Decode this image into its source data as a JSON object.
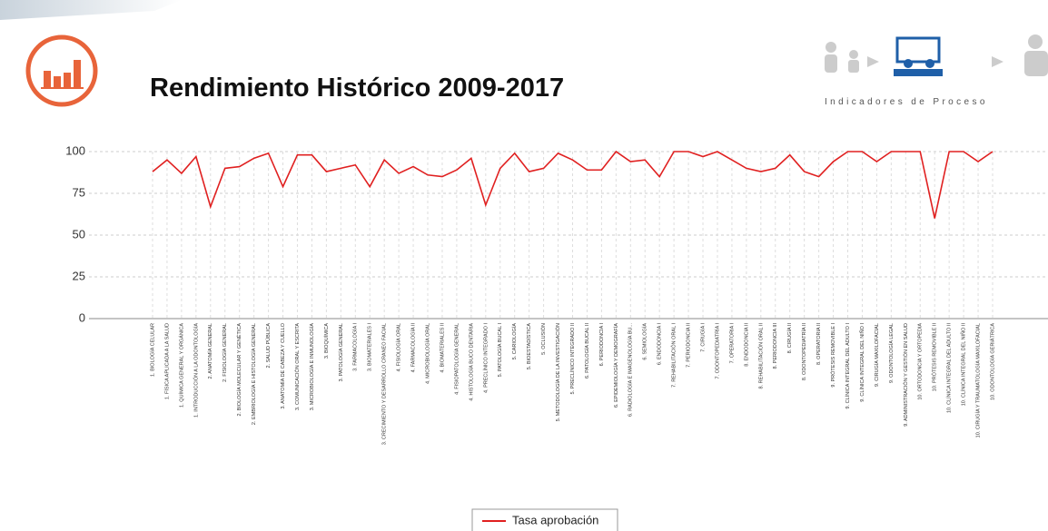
{
  "header": {
    "title": "Rendimiento Histórico 2009-2017",
    "logo_text": "Indicadores de Proceso"
  },
  "chart_data": {
    "type": "line",
    "categories": [
      "1. BIOLOGÍA CELULAR",
      "1. FÍSICA APLICADA A LA SALUD",
      "1. QUÍMICA GENERAL Y ORGÁNICA",
      "1. INTRODUCCIÓN A LA ODONTOLOGÍA",
      "2. ANATOMÍA GENERAL",
      "2. FISIOLOGÍA GENERAL",
      "2. BIOLOGÍA MOLECULAR Y GENÉTICA",
      "2. EMBRIOLOGÍA E HISTOLOGÍA GENERAL",
      "2. SALUD PÚBLICA",
      "3. ANATOMÍA DE CABEZA Y CUELLO",
      "3. COMUNICACIÓN ORAL Y ESCRITA",
      "3. MICROBIOLOGÍA E INMUNOLOGÍA",
      "3. BIOQUÍMICA",
      "3. PATOLOGÍA GENERAL",
      "3. FARMACOLOGÍA I",
      "3. BIOMATERIALES I",
      "3. CRECIMIENTO Y DESARROLLO CRANEO FACIAL",
      "4. FISIOLOGÍA ORAL",
      "4. FARMACOLOGÍA II",
      "4. MICROBIOLOGÍA ORAL",
      "4. BIOMATERIALES II",
      "4. FISIOPATOLOGÍA GENERAL",
      "4. HISTOLOGÍA BUCO DENTARIA",
      "4. PRECLÍNICO INTEGRADO I",
      "5. PATOLOGÍA BUCAL I",
      "5. CARIOLOGÍA",
      "5. BIOESTADÍSTICA",
      "5. OCLUSIÓN",
      "5. METODOLOGÍA DE LA INVESTIGACIÓN",
      "5. PRECLÍNICO INTEGRADO II",
      "6. PATOLOGÍA BUCAL II",
      "6. PERIODONCIA I",
      "6. EPIDEMIOLOGÍA Y DEMOGRAFÍA",
      "6. RADIOLOGÍA E IMAGENOLOGÍA BU...",
      "6. SEMIOLOGÍA",
      "6. ENDODONCIA I",
      "7. REHABILITACIÓN ORAL I",
      "7. PERIODONCIA II",
      "7. CIRUGÍA I",
      "7. ODONTOPEDIATRÍA I",
      "7. OPERATORIA I",
      "8. ENDODONCIA II",
      "8. REHABILITACIÓN ORAL II",
      "8. PERIODONCIA III",
      "8. CIRUGÍA II",
      "8. ODONTOPEDIATRÍA II",
      "8. OPERATORIA II",
      "9. PRÓTESIS REMOVIBLE I",
      "9. CLÍNICA INTEGRAL DEL ADULTO I",
      "9. CLÍNICA INTEGRAL DEL NIÑO I",
      "9. CIRUGÍA MAXILOFACIAL",
      "9. ODONTOLOGÍA LEGAL",
      "9. ADMINISTRACIÓN Y GESTIÓN EN SALUD",
      "10. ORTODONCIA Y ORTOPEDIA",
      "10. PRÓTESIS REMOVIBLE II",
      "10. CLÍNICA INTEGRAL DEL ADULTO II",
      "10. CLÍNICA INTEGRAL DEL NIÑO II",
      "10. CIRUGÍA Y TRAUMATOLOGÍA MAXILOFACIAL",
      "10. ODONTOLOGÍA GERIÁTRICA"
    ],
    "series": [
      {
        "name": "Tasa aprobación",
        "color": "#e02020",
        "values": [
          88,
          95,
          87,
          97,
          67,
          90,
          91,
          96,
          99,
          79,
          98,
          98,
          88,
          90,
          92,
          79,
          95,
          87,
          91,
          86,
          85,
          89,
          96,
          68,
          90,
          99,
          88,
          90,
          99,
          95,
          89,
          89,
          100,
          94,
          95,
          85,
          100,
          100,
          97,
          100,
          95,
          90,
          88,
          90,
          98,
          88,
          85,
          94,
          100,
          100,
          94,
          100,
          100,
          100,
          60,
          100,
          100,
          94,
          100
        ]
      }
    ],
    "ylim": [
      0,
      100
    ],
    "yticks": [
      0,
      25,
      50,
      75,
      100
    ],
    "grid": true,
    "legend": "bottom"
  }
}
